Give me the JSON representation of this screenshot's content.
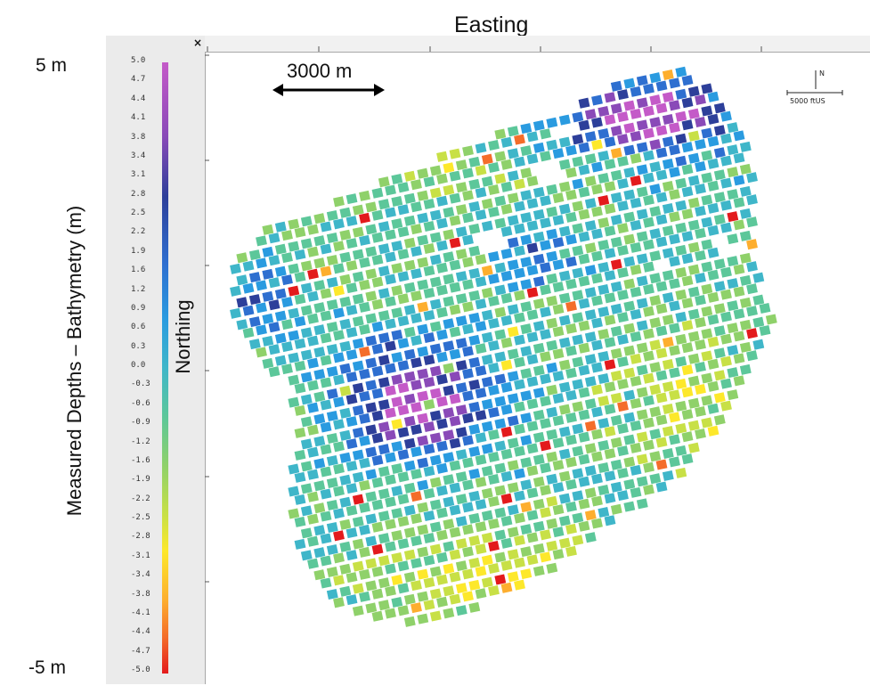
{
  "labels": {
    "top": "5 m",
    "bottom": "-5 m",
    "title": "Measured Depths – Bathymetry (m)",
    "easting": "Easting",
    "northing": "Northing"
  },
  "panel": {
    "close_label": "×"
  },
  "colorbar": {
    "ticks": [
      "5.0",
      "4.7",
      "4.4",
      "4.1",
      "3.8",
      "3.4",
      "3.1",
      "2.8",
      "2.5",
      "2.2",
      "1.9",
      "1.6",
      "1.2",
      "0.9",
      "0.6",
      "0.3",
      "0.0",
      "-0.3",
      "-0.6",
      "-0.9",
      "-1.2",
      "-1.6",
      "-1.9",
      "-2.2",
      "-2.5",
      "-2.8",
      "-3.1",
      "-3.4",
      "-3.8",
      "-4.1",
      "-4.4",
      "-4.7",
      "-5.0"
    ],
    "colors": [
      "#e31a1c",
      "#f46d2a",
      "#fdae2e",
      "#fde82b",
      "#c8e046",
      "#8fd16a",
      "#5cc79a",
      "#3fb6c9",
      "#2a9be0",
      "#2e6fd0",
      "#2d3f9a",
      "#8a4ab8",
      "#c45ac8"
    ],
    "palette_names": [
      "red",
      "orange",
      "light-orange",
      "yellow",
      "yellow-green",
      "green",
      "teal",
      "cyan",
      "light-blue",
      "blue",
      "navy",
      "purple",
      "magenta"
    ]
  },
  "scalebar": {
    "label": "3000 m"
  },
  "north_arrow": {
    "label": "N",
    "scale_label": "5000 ftUS"
  },
  "map": {
    "description_palette": "depth cells colored by measured depth",
    "cell_color_indices": "generated procedurally from depth field"
  },
  "colors": {
    "panel_bg": "#ebebeb",
    "ruler_bg": "#f1f1f1",
    "arrow": "#000000"
  }
}
